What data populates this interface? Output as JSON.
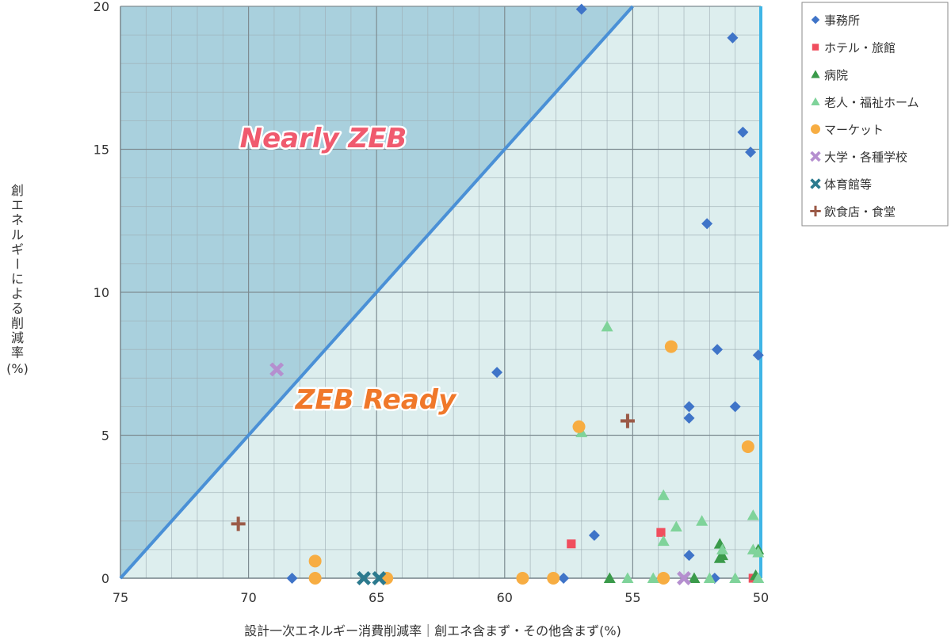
{
  "chart_data": {
    "type": "scatter",
    "xlabel": "設計一次エネルギー消費削減率｜創エネ含まず・その他含まず(%)",
    "ylabel_lines": [
      "創エネルギーによる削減率",
      "(%)"
    ],
    "xlim": [
      75,
      50
    ],
    "ylim": [
      0,
      20
    ],
    "x_ticks": [
      75,
      70,
      65,
      60,
      55,
      50
    ],
    "y_ticks": [
      0,
      5,
      10,
      15,
      20
    ],
    "grid": true,
    "legend": "right",
    "region_labels": {
      "nearly_zeb": "Nearly ZEB",
      "zeb_ready": "ZEB Ready"
    },
    "colors": {
      "nearly_zeb_fill": "#a9d0dd",
      "zeb_ready_fill": "#ddeeee",
      "boundary_line": "#4a90d6",
      "threshold_line": "#3fb5e6",
      "nearly_zeb_text": "#f05a6e",
      "zeb_ready_text": "#f0782a"
    },
    "series": [
      {
        "name": "事務所",
        "marker": "diamond",
        "color": "#3f74c8",
        "points": [
          [
            57.0,
            19.9
          ],
          [
            51.1,
            18.9
          ],
          [
            50.7,
            15.6
          ],
          [
            50.4,
            14.9
          ],
          [
            52.1,
            12.4
          ],
          [
            51.7,
            8.0
          ],
          [
            50.1,
            7.8
          ],
          [
            60.3,
            7.2
          ],
          [
            52.8,
            6.0
          ],
          [
            51.0,
            6.0
          ],
          [
            52.8,
            5.6
          ],
          [
            56.5,
            1.5
          ],
          [
            52.8,
            0.8
          ],
          [
            57.7,
            0.0
          ],
          [
            68.3,
            0.0
          ],
          [
            51.8,
            0.0
          ]
        ]
      },
      {
        "name": "ホテル・旅館",
        "marker": "square",
        "color": "#f04e5e",
        "points": [
          [
            57.4,
            1.2
          ],
          [
            53.9,
            1.6
          ],
          [
            50.3,
            0.0
          ]
        ]
      },
      {
        "name": "病院",
        "marker": "triangle",
        "color": "#3a9a4a",
        "points": [
          [
            51.6,
            1.2
          ],
          [
            51.5,
            0.8
          ],
          [
            51.6,
            0.7
          ],
          [
            50.1,
            1.0
          ],
          [
            52.6,
            0.0
          ],
          [
            55.9,
            0.0
          ],
          [
            50.2,
            0.1
          ]
        ]
      },
      {
        "name": "老人・福祉ホーム",
        "marker": "triangle",
        "color": "#7fd39a",
        "points": [
          [
            56.0,
            8.8
          ],
          [
            57.0,
            5.1
          ],
          [
            53.8,
            2.9
          ],
          [
            50.3,
            2.2
          ],
          [
            52.3,
            2.0
          ],
          [
            53.3,
            1.8
          ],
          [
            53.8,
            1.3
          ],
          [
            51.5,
            1.0
          ],
          [
            50.3,
            1.0
          ],
          [
            50.1,
            0.9
          ],
          [
            55.2,
            0.0
          ],
          [
            54.2,
            0.0
          ],
          [
            51.0,
            0.0
          ],
          [
            50.1,
            0.0
          ],
          [
            52.0,
            0.0
          ]
        ]
      },
      {
        "name": "マーケット",
        "marker": "circle",
        "color": "#f7ad42",
        "points": [
          [
            53.5,
            8.1
          ],
          [
            57.1,
            5.3
          ],
          [
            50.5,
            4.6
          ],
          [
            67.4,
            0.6
          ],
          [
            67.4,
            0.0
          ],
          [
            64.6,
            0.0
          ],
          [
            59.3,
            0.0
          ],
          [
            58.1,
            0.0
          ],
          [
            53.8,
            0.0
          ]
        ]
      },
      {
        "name": "大学・各種学校",
        "marker": "x",
        "color": "#b58fcf",
        "points": [
          [
            68.9,
            7.3
          ],
          [
            53.0,
            0.0
          ]
        ]
      },
      {
        "name": "体育館等",
        "marker": "x",
        "color": "#2c7a8e",
        "points": [
          [
            65.5,
            0.0
          ],
          [
            64.9,
            0.0
          ]
        ]
      },
      {
        "name": "飲食店・食堂",
        "marker": "plus",
        "color": "#9b5a47",
        "points": [
          [
            55.2,
            5.5
          ],
          [
            70.4,
            1.9
          ]
        ]
      }
    ]
  }
}
